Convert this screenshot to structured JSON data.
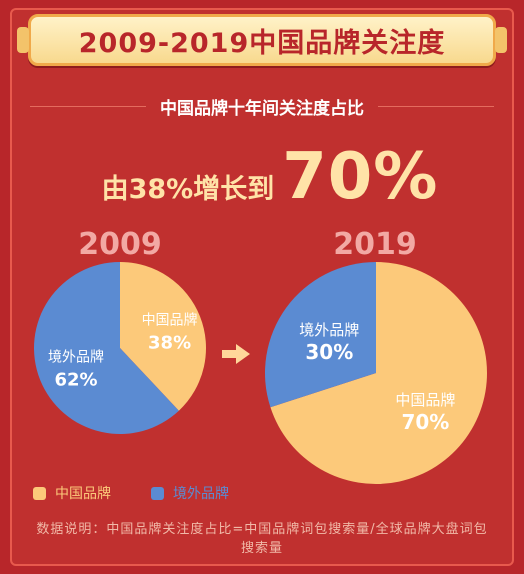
{
  "header": {
    "title": "2009-2019中国品牌关注度"
  },
  "subtitle": "中国品牌十年间关注度占比",
  "headline": {
    "prefix": "由38%增长到",
    "value": "70%"
  },
  "colors": {
    "domestic": "#fcc97a",
    "overseas": "#5b8bd2",
    "background": "#c0302f",
    "accent": "#ffe3a8"
  },
  "icons": {
    "arrow": "right-arrow-icon"
  },
  "chart_data": [
    {
      "type": "pie",
      "title": "2009",
      "slices": [
        {
          "name": "中国品牌",
          "value": 38,
          "label": "38%"
        },
        {
          "name": "境外品牌",
          "value": 62,
          "label": "62%"
        }
      ]
    },
    {
      "type": "pie",
      "title": "2019",
      "slices": [
        {
          "name": "中国品牌",
          "value": 70,
          "label": "70%"
        },
        {
          "name": "境外品牌",
          "value": 30,
          "label": "30%"
        }
      ]
    }
  ],
  "legend": [
    {
      "name": "中国品牌"
    },
    {
      "name": "境外品牌"
    }
  ],
  "note": "数据说明：中国品牌关注度占比=中国品牌词包搜索量/全球品牌大盘词包搜索量"
}
